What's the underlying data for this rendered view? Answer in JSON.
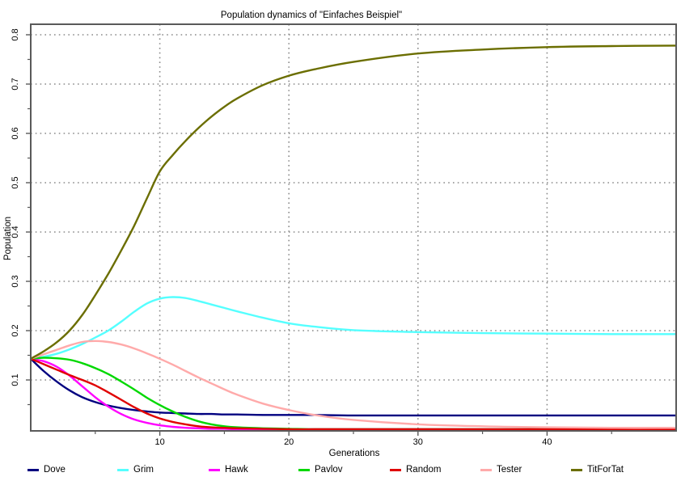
{
  "chart_data": {
    "type": "line",
    "title": "Population dynamics of \"Einfaches Beispiel\"",
    "xlabel": "Generations",
    "ylabel": "Population",
    "xlim": [
      0,
      50
    ],
    "ylim": [
      0,
      0.82
    ],
    "xticks": [
      10,
      20,
      30,
      40
    ],
    "yticks": [
      0.1,
      0.2,
      0.3,
      0.4,
      0.5,
      0.6,
      0.7,
      0.8
    ],
    "grid": "dotted",
    "legend_position": "bottom",
    "x": [
      0,
      1,
      2,
      3,
      4,
      5,
      6,
      7,
      8,
      9,
      10,
      11,
      12,
      13,
      14,
      15,
      16,
      18,
      20,
      22,
      25,
      30,
      35,
      40,
      45,
      50
    ],
    "series": [
      {
        "name": "Dove",
        "color": "#000080",
        "values": [
          0.143,
          0.118,
          0.097,
          0.079,
          0.065,
          0.055,
          0.048,
          0.043,
          0.039,
          0.036,
          0.034,
          0.033,
          0.032,
          0.031,
          0.031,
          0.03,
          0.03,
          0.029,
          0.029,
          0.029,
          0.028,
          0.028,
          0.028,
          0.028,
          0.028,
          0.028
        ]
      },
      {
        "name": "Grim",
        "color": "#55ffff",
        "values": [
          0.143,
          0.147,
          0.153,
          0.162,
          0.173,
          0.186,
          0.2,
          0.218,
          0.238,
          0.255,
          0.265,
          0.268,
          0.266,
          0.26,
          0.253,
          0.246,
          0.239,
          0.226,
          0.215,
          0.208,
          0.201,
          0.197,
          0.195,
          0.194,
          0.193,
          0.193
        ]
      },
      {
        "name": "Hawk",
        "color": "#ff00ff",
        "values": [
          0.143,
          0.138,
          0.127,
          0.109,
          0.087,
          0.065,
          0.046,
          0.031,
          0.02,
          0.013,
          0.008,
          0.005,
          0.003,
          0.002,
          0.001,
          0.001,
          0.0,
          0.0,
          0.0,
          0.0,
          0.0,
          0.0,
          0.0,
          0.0,
          0.0,
          0.0
        ]
      },
      {
        "name": "Pavlov",
        "color": "#00d800",
        "values": [
          0.143,
          0.145,
          0.144,
          0.141,
          0.134,
          0.124,
          0.112,
          0.097,
          0.081,
          0.064,
          0.049,
          0.036,
          0.025,
          0.016,
          0.01,
          0.006,
          0.004,
          0.002,
          0.001,
          0.0,
          0.0,
          0.0,
          0.0,
          0.0,
          0.0,
          0.0
        ]
      },
      {
        "name": "Random",
        "color": "#e00000",
        "values": [
          0.143,
          0.132,
          0.121,
          0.11,
          0.1,
          0.089,
          0.075,
          0.06,
          0.045,
          0.032,
          0.022,
          0.015,
          0.01,
          0.006,
          0.004,
          0.003,
          0.002,
          0.001,
          0.0,
          0.0,
          0.0,
          0.0,
          0.0,
          0.0,
          0.0,
          0.0
        ]
      },
      {
        "name": "Tester",
        "color": "#ffaaaa",
        "values": [
          0.143,
          0.152,
          0.161,
          0.17,
          0.177,
          0.179,
          0.177,
          0.172,
          0.164,
          0.154,
          0.143,
          0.131,
          0.118,
          0.105,
          0.093,
          0.081,
          0.07,
          0.052,
          0.039,
          0.029,
          0.019,
          0.01,
          0.006,
          0.004,
          0.003,
          0.003
        ]
      },
      {
        "name": "TitForTat",
        "color": "#6b6e00",
        "values": [
          0.143,
          0.158,
          0.176,
          0.2,
          0.232,
          0.272,
          0.315,
          0.362,
          0.412,
          0.468,
          0.523,
          0.556,
          0.585,
          0.611,
          0.634,
          0.654,
          0.671,
          0.698,
          0.717,
          0.73,
          0.745,
          0.762,
          0.77,
          0.775,
          0.777,
          0.778
        ]
      }
    ],
    "colors": {
      "frame": "#5a5a5a",
      "grid": "#8a8a8a",
      "text": "#000000"
    }
  }
}
